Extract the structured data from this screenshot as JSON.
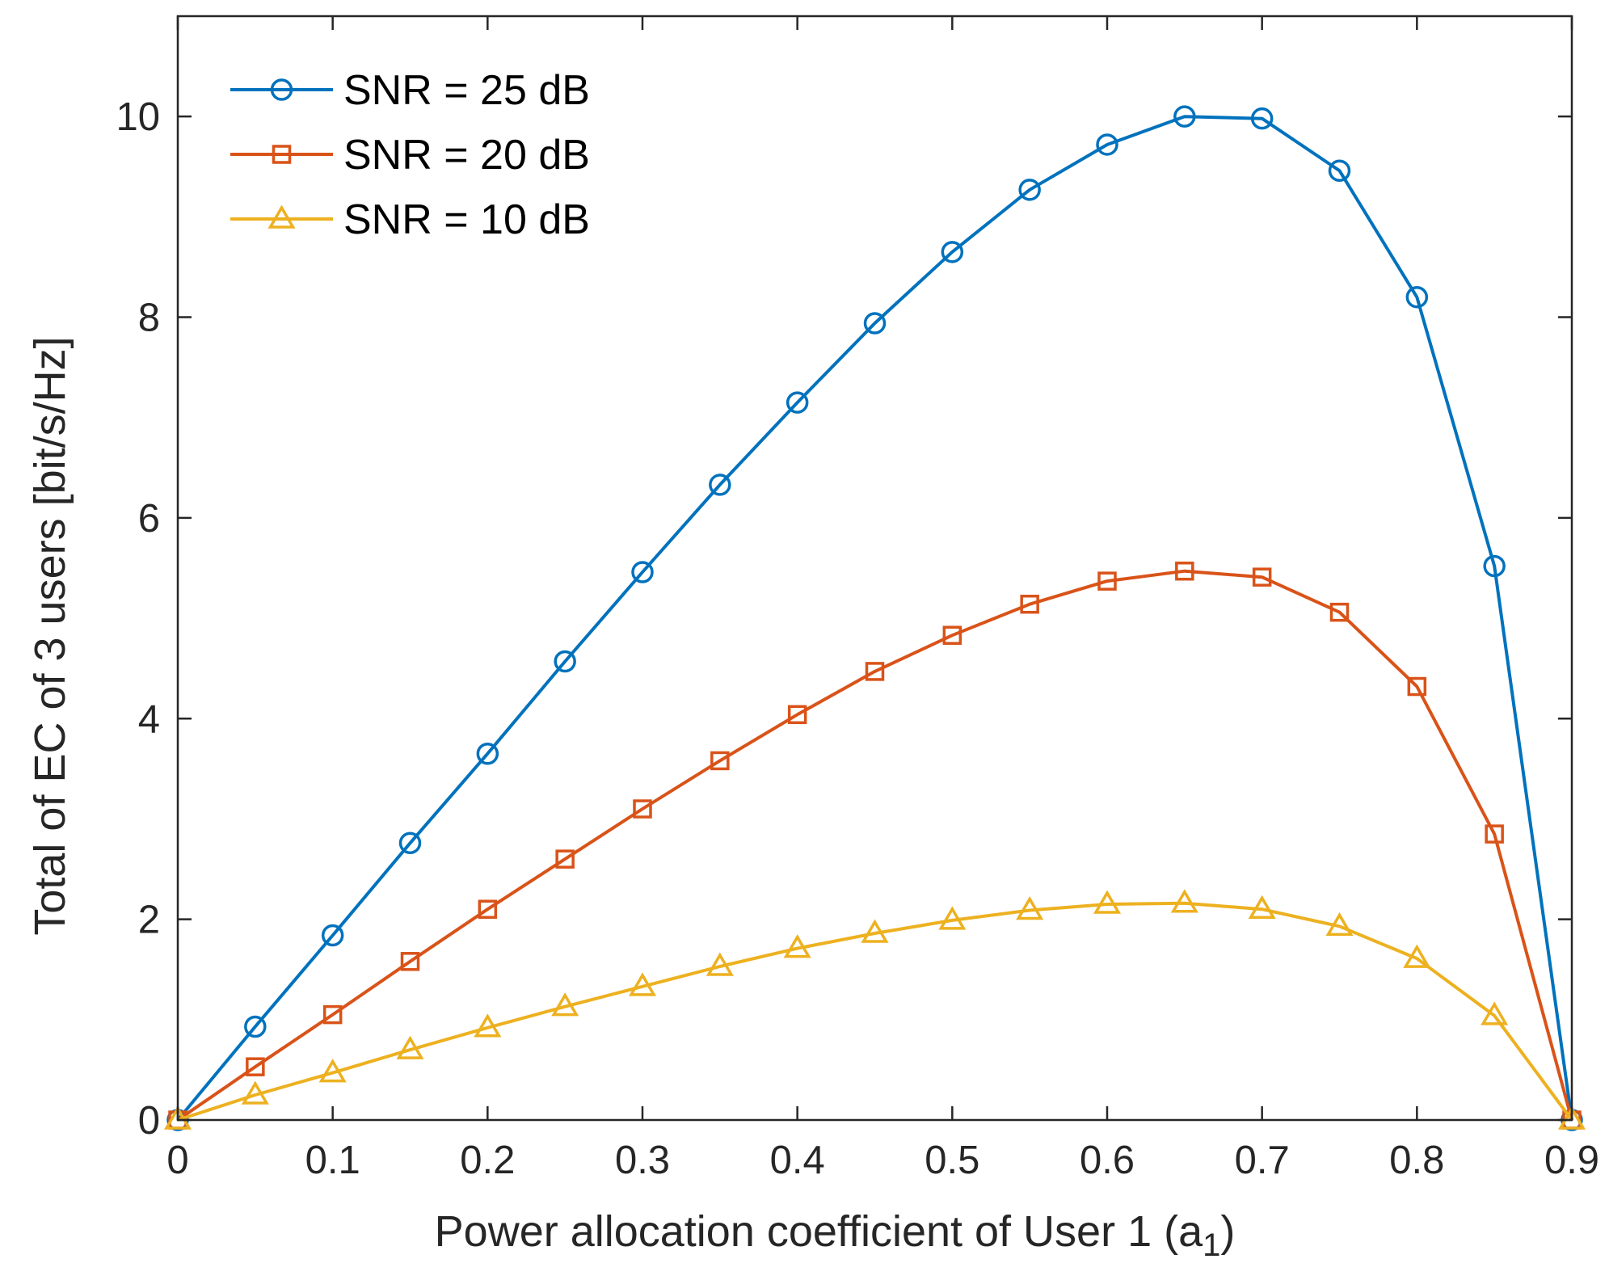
{
  "chart_data": {
    "type": "line",
    "title": "",
    "xlabel": "Power allocation coefficient of User 1 (a",
    "xlabel_subscript": "1",
    "xlabel_suffix": ")",
    "ylabel": "Total of EC of 3 users [bit/s/Hz]",
    "xlim": [
      0,
      0.9
    ],
    "ylim": [
      0,
      11
    ],
    "x_ticks": [
      0,
      0.1,
      0.2,
      0.3,
      0.4,
      0.5,
      0.6,
      0.7,
      0.8,
      0.9
    ],
    "x_tick_labels": [
      "0",
      "0.1",
      "0.2",
      "0.3",
      "0.4",
      "0.5",
      "0.6",
      "0.7",
      "0.8",
      "0.9"
    ],
    "y_ticks": [
      0,
      2,
      4,
      6,
      8,
      10
    ],
    "y_tick_labels": [
      "0",
      "2",
      "4",
      "6",
      "8",
      "10"
    ],
    "grid": false,
    "legend_position": "top-left",
    "x": [
      0,
      0.05,
      0.1,
      0.15,
      0.2,
      0.25,
      0.3,
      0.35,
      0.4,
      0.45,
      0.5,
      0.55,
      0.6,
      0.65,
      0.7,
      0.75,
      0.8,
      0.85,
      0.9
    ],
    "series": [
      {
        "name": "SNR = 25 dB",
        "color": "#0072BD",
        "marker": "circle",
        "values": [
          0,
          0.93,
          1.84,
          2.76,
          3.65,
          4.57,
          5.46,
          6.33,
          7.15,
          7.94,
          8.65,
          9.27,
          9.72,
          10.0,
          9.98,
          9.46,
          8.2,
          5.52,
          0
        ]
      },
      {
        "name": "SNR = 20 dB",
        "color": "#D95319",
        "marker": "square",
        "values": [
          0,
          0.53,
          1.05,
          1.58,
          2.1,
          2.6,
          3.1,
          3.58,
          4.04,
          4.47,
          4.83,
          5.14,
          5.37,
          5.47,
          5.41,
          5.06,
          4.32,
          2.85,
          0
        ]
      },
      {
        "name": "SNR = 10 dB",
        "color": "#EDB120",
        "marker": "triangle",
        "values": [
          0,
          0.25,
          0.47,
          0.7,
          0.92,
          1.13,
          1.33,
          1.53,
          1.71,
          1.86,
          1.99,
          2.09,
          2.15,
          2.16,
          2.1,
          1.93,
          1.61,
          1.04,
          0
        ]
      }
    ]
  }
}
